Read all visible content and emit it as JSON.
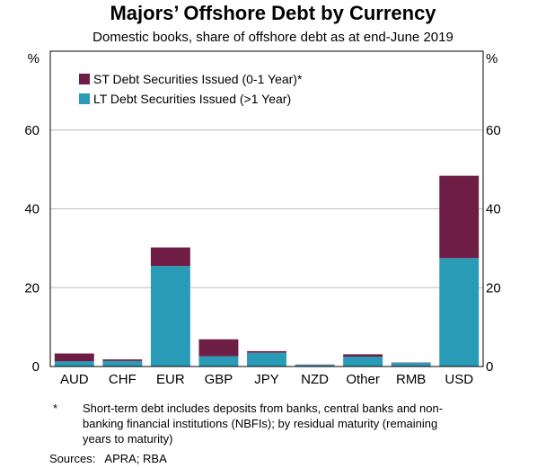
{
  "chart_data": {
    "type": "bar",
    "stacked": true,
    "title": "Majors’ Offshore Debt by Currency",
    "subtitle": "Domestic books, share of offshore debt as at end-June 2019",
    "categories": [
      "AUD",
      "CHF",
      "EUR",
      "GBP",
      "JPY",
      "NZD",
      "Other",
      "RMB",
      "USD"
    ],
    "series": [
      {
        "name": "LT Debt Securities Issued (>1 Year)",
        "color": "#2a9bb7",
        "values": [
          1.3,
          1.4,
          25.5,
          2.6,
          3.5,
          0.4,
          2.5,
          0.9,
          27.5
        ]
      },
      {
        "name": "ST Debt Securities Issued (0-1 Year)*",
        "color": "#6e1e45",
        "values": [
          2.0,
          0.4,
          4.7,
          4.3,
          0.4,
          0.1,
          0.6,
          0.1,
          20.9
        ]
      }
    ],
    "ylim": [
      0,
      80
    ],
    "yticks": [
      0,
      20,
      40,
      60
    ],
    "ylabel_left": "%",
    "ylabel_right": "%",
    "legend_position": "top-left"
  },
  "footnote": {
    "marker": "*",
    "text": "Short-term debt includes deposits from banks, central banks and non-banking financial institutions (NBFIs); by residual maturity (remaining years to maturity)"
  },
  "sources": "Sources:   APRA; RBA"
}
